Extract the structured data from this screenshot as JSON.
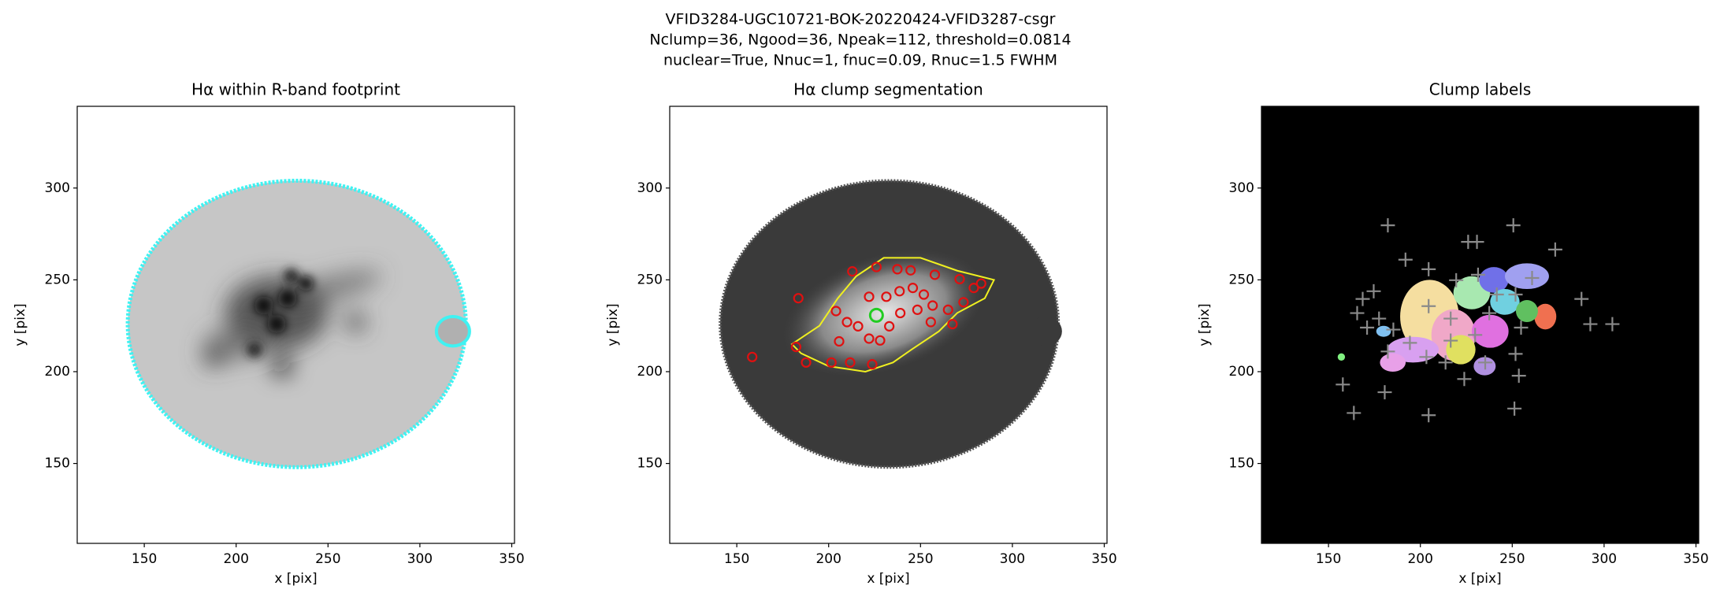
{
  "suptitle": [
    "VFID3284-UGC10721-BOK-20220424-VFID3287-csgr",
    "Nclump=36, Ngood=36, Npeak=112, threshold=0.0814",
    "nuclear=True, Nnuc=1, fnuc=0.09, Rnuc=1.5 FWHM"
  ],
  "chart_data": [
    {
      "type": "image",
      "title": "Hα within R-band footprint",
      "x_label": "x [pix]",
      "y_label": "y [pix]",
      "xlim": [
        113.5,
        351.5
      ],
      "ylim": [
        106.5,
        344.5
      ],
      "xticks": [
        150,
        200,
        250,
        300,
        350
      ],
      "yticks": [
        150,
        200,
        250,
        300
      ]
    },
    {
      "type": "image",
      "title": "Hα clump segmentation",
      "x_label": "x [pix]",
      "y_label": "y [pix]",
      "xlim": [
        113.5,
        351.5
      ],
      "ylim": [
        106.5,
        344.5
      ],
      "xticks": [
        150,
        200,
        250,
        300,
        350
      ],
      "yticks": [
        150,
        200,
        250,
        300
      ],
      "points": {
        "marker": "circle",
        "color": "#e01010",
        "x": [
          158.4,
          183.5,
          182.3,
          187.7,
          201.5,
          211.7,
          223.7,
          205.7,
          204,
          210,
          216,
          222,
          228,
          233,
          239,
          222,
          231.4,
          238.6,
          245.8,
          251.8,
          248.3,
          256.6,
          255.6,
          267.4,
          271.3,
          279,
          283,
          273.4,
          257.8,
          237.4,
          226,
          212.9,
          244.6,
          265
        ],
        "y": [
          208,
          240,
          213.5,
          205,
          205,
          205,
          204,
          216.5,
          233,
          227,
          224.7,
          218,
          217,
          224.7,
          231.9,
          240.8,
          240.8,
          243.8,
          245.6,
          242,
          233.7,
          236,
          227,
          225.9,
          250.4,
          245.6,
          248,
          237.8,
          252.8,
          255.8,
          257,
          254.6,
          255.2,
          233.7
        ]
      },
      "nucleus": {
        "marker": "circle",
        "color": "#22cc22",
        "x": [
          226
        ],
        "y": [
          230.7
        ]
      }
    },
    {
      "type": "image",
      "title": "Clump labels",
      "x_label": "x [pix]",
      "y_label": "y [pix]",
      "xlim": [
        113.5,
        351.5
      ],
      "ylim": [
        106.5,
        344.5
      ],
      "xticks": [
        150,
        200,
        250,
        300,
        350
      ],
      "yticks": [
        150,
        200,
        250,
        300
      ],
      "points": {
        "marker": "plus",
        "color": "#8a8a8a",
        "x": [
          182.3,
          250.6,
          191.9,
          226,
          230.8,
          273.4,
          204.5,
          168.6,
          174.6,
          165.6,
          171,
          177.5,
          185.3,
          182.3,
          194.3,
          203.3,
          216.5,
          229.8,
          235.3,
          223.9,
          213.7,
          251.8,
          254.8,
          251.8,
          260.8,
          287.7,
          292.5,
          304.5,
          157.8,
          163.8,
          180.6,
          204.5,
          251.2,
          253.6,
          204.5,
          216.5,
          237.5,
          241.6,
          231.4,
          219.5
        ],
        "y": [
          279.7,
          279.7,
          261,
          270.7,
          270.7,
          266.5,
          255.8,
          239.6,
          243.8,
          231.9,
          224,
          228.9,
          222.9,
          211,
          215.7,
          208,
          216.9,
          220,
          205,
          196,
          205,
          209.7,
          224,
          242,
          251,
          239.6,
          225.9,
          225.9,
          193,
          177.5,
          188.8,
          176.3,
          179.9,
          197.8,
          235.7,
          228.9,
          231.9,
          242,
          252.8,
          249.8
        ]
      }
    }
  ]
}
